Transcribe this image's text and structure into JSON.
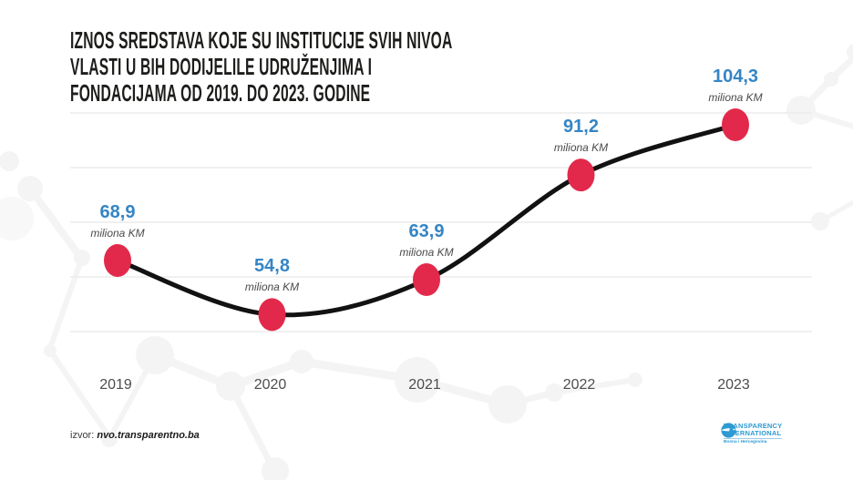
{
  "title": {
    "lines": [
      "IZNOS SREDSTAVA KOJE SU INSTITUCIJE SVIH NIVOA",
      "VLASTI U BIH DODIJELILE UDRUŽENJIMA I",
      "FONDACIJAMA OD 2019. DO 2023. GODINE"
    ]
  },
  "chart_data": {
    "type": "line",
    "title": "IZNOS SREDSTAVA KOJE SU INSTITUCIJE SVIH NIVOA VLASTI U BIH DODIJELILE UDRUŽENJIMA I FONDACIJAMA OD 2019. DO 2023. GODINE",
    "categories": [
      "2019",
      "2020",
      "2021",
      "2022",
      "2023"
    ],
    "values": [
      68.9,
      54.8,
      63.9,
      91.2,
      104.3
    ],
    "unit": "miliona KM",
    "points": [
      {
        "year": "2019",
        "value": 68.9,
        "value_text": "68,9",
        "unit": "miliona KM"
      },
      {
        "year": "2020",
        "value": 54.8,
        "value_text": "54,8",
        "unit": "miliona KM"
      },
      {
        "year": "2021",
        "value": 63.9,
        "value_text": "63,9",
        "unit": "miliona KM"
      },
      {
        "year": "2022",
        "value": 91.2,
        "value_text": "91,2",
        "unit": "miliona KM"
      },
      {
        "year": "2023",
        "value": 104.3,
        "value_text": "104,3",
        "unit": "miliona KM"
      }
    ],
    "xlabel": "",
    "ylabel": "",
    "ylim": [
      47,
      110
    ],
    "grid": "horizontal-only",
    "legend": "none",
    "colors": {
      "dot": "#e3294b",
      "line": "#121212",
      "value_label": "#3585c5",
      "unit_label": "#4b4b4b",
      "grid": "#ececec",
      "year_label": "#4d4d4d"
    }
  },
  "source": {
    "prefix": "izvor:",
    "text": "nvo.transparentno.ba"
  },
  "logo": {
    "line1": "TRANSPARENCY",
    "line2": "INTERNATIONAL",
    "line3": "Bosna i Hercegovina"
  }
}
